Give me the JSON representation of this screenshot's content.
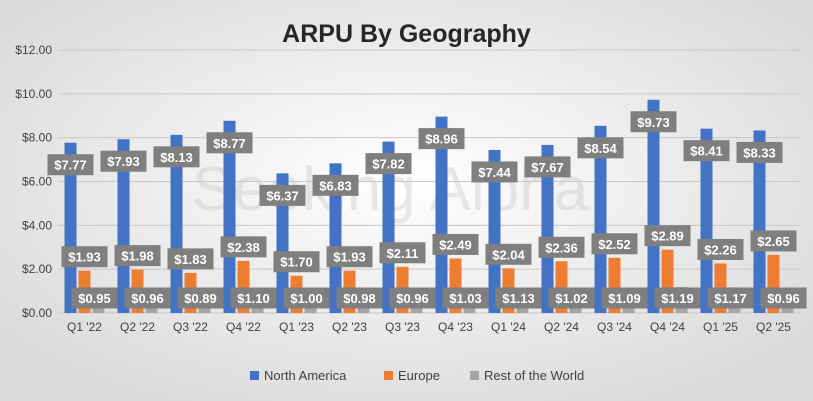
{
  "chart_data": {
    "type": "bar",
    "title": "ARPU By Geography",
    "watermark": "Seeking Alpha",
    "categories": [
      "Q1 '22",
      "Q2 '22",
      "Q3 '22",
      "Q4 '22",
      "Q1 '23",
      "Q2 '23",
      "Q3 '23",
      "Q4 '23",
      "Q1 '24",
      "Q2 '24",
      "Q3 '24",
      "Q4 '24",
      "Q1 '25",
      "Q2 '25"
    ],
    "series": [
      {
        "name": "North America",
        "color": "#4472c4",
        "values": [
          7.77,
          7.93,
          8.13,
          8.77,
          6.37,
          6.83,
          7.82,
          8.96,
          7.44,
          7.67,
          8.54,
          9.73,
          8.41,
          8.33
        ],
        "labels": [
          "$7.77",
          "$7.93",
          "$8.13",
          "$8.77",
          "$6.37",
          "$6.83",
          "$7.82",
          "$8.96",
          "$7.44",
          "$7.67",
          "$8.54",
          "$9.73",
          "$8.41",
          "$8.33"
        ]
      },
      {
        "name": "Europe",
        "color": "#ed7d31",
        "values": [
          1.93,
          1.98,
          1.83,
          2.38,
          1.7,
          1.93,
          2.11,
          2.49,
          2.04,
          2.36,
          2.52,
          2.89,
          2.26,
          2.65
        ],
        "labels": [
          "$1.93",
          "$1.98",
          "$1.83",
          "$2.38",
          "$1.70",
          "$1.93",
          "$2.11",
          "$2.49",
          "$2.04",
          "$2.36",
          "$2.52",
          "$2.89",
          "$2.26",
          "$2.65"
        ]
      },
      {
        "name": "Rest of the World",
        "color": "#a5a5a5",
        "values": [
          0.95,
          0.96,
          0.89,
          1.1,
          1.0,
          0.98,
          0.96,
          1.03,
          1.13,
          1.02,
          1.09,
          1.19,
          1.17,
          0.96
        ],
        "labels": [
          "$0.95",
          "$0.96",
          "$0.89",
          "$1.10",
          "$1.00",
          "$0.98",
          "$0.96",
          "$1.03",
          "$1.13",
          "$1.02",
          "$1.09",
          "$1.19",
          "$1.17",
          "$0.96"
        ]
      }
    ],
    "yticks": [
      "$0.00",
      "$2.00",
      "$4.00",
      "$6.00",
      "$8.00",
      "$10.00",
      "$12.00"
    ],
    "ylim": [
      0,
      12
    ],
    "grid": true,
    "legend": "bottom",
    "colors": {
      "background": "#d9d9d9",
      "label_box": "#7f7f7f",
      "label_text": "#ffffff",
      "title": "#262626",
      "axis_text": "#404040"
    }
  }
}
